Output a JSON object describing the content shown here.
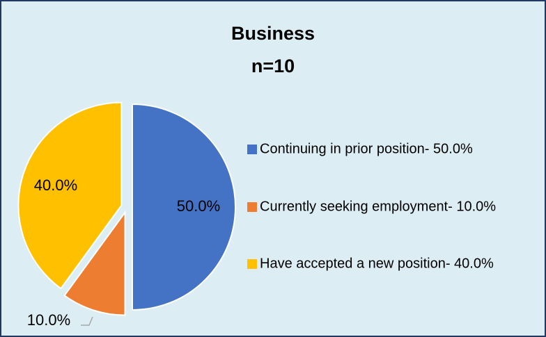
{
  "chart_data": {
    "type": "pie",
    "title": "Business",
    "subtitle": "n=10",
    "categories": [
      "Continuing in prior position- 50.0%",
      "Currently seeking employment- 10.0%",
      "Have accepted a new position- 40.0%"
    ],
    "values": [
      50,
      10,
      40
    ],
    "value_labels": [
      "50.0%",
      "10.0%",
      "40.0%"
    ],
    "colors": [
      "#4472c4",
      "#ed7d31",
      "#ffc000"
    ],
    "legend": "right"
  }
}
